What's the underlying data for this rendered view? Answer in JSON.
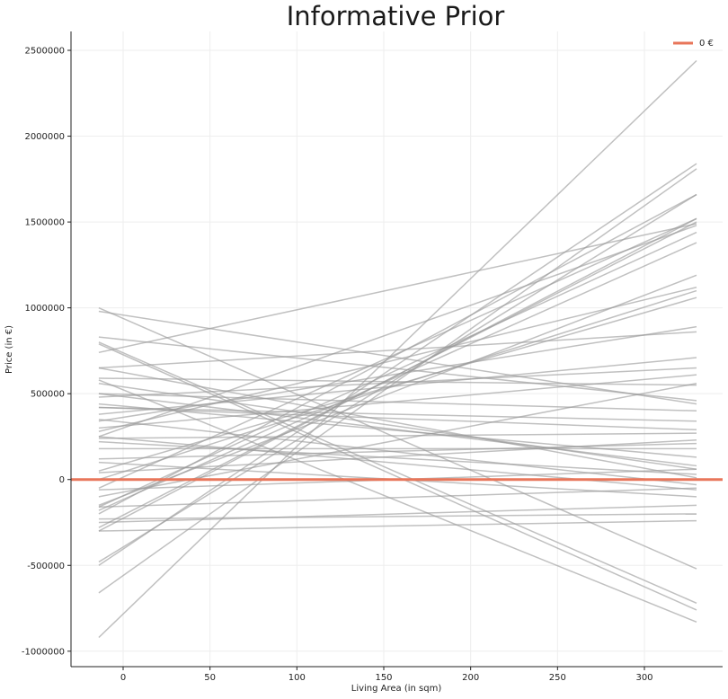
{
  "chart_data": {
    "type": "line",
    "title": "Informative Prior",
    "xlabel": "Living Area (in sqm)",
    "ylabel": "Price (in €)",
    "xlim": [
      -30,
      345
    ],
    "ylim": [
      -1090000,
      2610000
    ],
    "x_ticks": [
      0,
      50,
      100,
      150,
      200,
      250,
      300
    ],
    "y_ticks": [
      -1000000,
      -500000,
      0,
      500000,
      1000000,
      1500000,
      2000000,
      2500000
    ],
    "grid": true,
    "legend_position": "top-right",
    "colors": {
      "samples": "#999999",
      "zero_line": "#E8765A",
      "axis": "#222222",
      "grid": "#eeeeee"
    },
    "x_range": [
      -14,
      330
    ],
    "reference_line": {
      "name": "0 €",
      "y": 0
    },
    "series": [
      {
        "y0": -920000,
        "y1": 2440000
      },
      {
        "y0": -660000,
        "y1": 1810000
      },
      {
        "y0": -500000,
        "y1": 1840000
      },
      {
        "y0": -480000,
        "y1": 1660000
      },
      {
        "y0": -300000,
        "y1": 1520000
      },
      {
        "y0": -280000,
        "y1": 1500000
      },
      {
        "y0": -200000,
        "y1": 1660000
      },
      {
        "y0": -180000,
        "y1": 1380000
      },
      {
        "y0": -160000,
        "y1": 1440000
      },
      {
        "y0": -150000,
        "y1": 1190000
      },
      {
        "y0": -50000,
        "y1": 1520000
      },
      {
        "y0": 0,
        "y1": 1100000
      },
      {
        "y0": 50000,
        "y1": 1060000
      },
      {
        "y0": 250000,
        "y1": 1480000
      },
      {
        "y0": 280000,
        "y1": 1120000
      },
      {
        "y0": 740000,
        "y1": 1490000
      },
      {
        "y0": 650000,
        "y1": 860000
      },
      {
        "y0": 340000,
        "y1": 890000
      },
      {
        "y0": 380000,
        "y1": 710000
      },
      {
        "y0": 480000,
        "y1": 650000
      },
      {
        "y0": 590000,
        "y1": 550000
      },
      {
        "y0": 980000,
        "y1": 440000
      },
      {
        "y0": 830000,
        "y1": 460000
      },
      {
        "y0": 420000,
        "y1": 340000
      },
      {
        "y0": 500000,
        "y1": 400000
      },
      {
        "y0": 420000,
        "y1": 290000
      },
      {
        "y0": 240000,
        "y1": 270000
      },
      {
        "y0": 120000,
        "y1": 210000
      },
      {
        "y0": 180000,
        "y1": 180000
      },
      {
        "y0": 40000,
        "y1": 230000
      },
      {
        "y0": 560000,
        "y1": 60000
      },
      {
        "y0": 500000,
        "y1": 80000
      },
      {
        "y0": 220000,
        "y1": 30000
      },
      {
        "y0": 350000,
        "y1": -30000
      },
      {
        "y0": 250000,
        "y1": -60000
      },
      {
        "y0": -60000,
        "y1": 60000
      },
      {
        "y0": -160000,
        "y1": -50000
      },
      {
        "y0": -250000,
        "y1": -150000
      },
      {
        "y0": -230000,
        "y1": -200000
      },
      {
        "y0": -300000,
        "y1": -240000
      },
      {
        "y0": 1000000,
        "y1": -520000
      },
      {
        "y0": 800000,
        "y1": -720000
      },
      {
        "y0": 790000,
        "y1": -760000
      },
      {
        "y0": 580000,
        "y1": -830000
      },
      {
        "y0": 650000,
        "y1": 10000
      },
      {
        "y0": 440000,
        "y1": 130000
      },
      {
        "y0": 100000,
        "y1": -100000
      },
      {
        "y0": -100000,
        "y1": 560000
      },
      {
        "y0": 300000,
        "y1": 610000
      }
    ]
  }
}
